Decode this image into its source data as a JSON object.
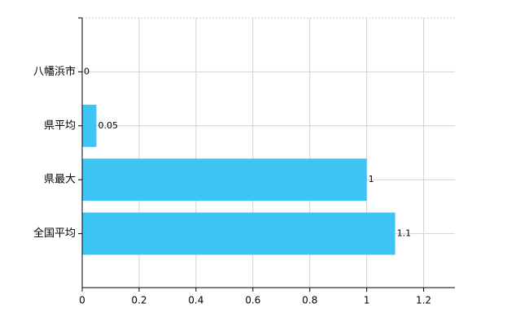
{
  "chart_data": {
    "type": "bar",
    "orientation": "horizontal",
    "categories": [
      "八幡浜市",
      "県平均",
      "県最大",
      "全国平均"
    ],
    "values": [
      0,
      0.05,
      1,
      1.1
    ],
    "color": "#3ec5f6",
    "xlim": [
      0,
      1.31
    ],
    "xticks": [
      0,
      0.2,
      0.4,
      0.6,
      0.8,
      1,
      1.2
    ],
    "grid": true
  }
}
